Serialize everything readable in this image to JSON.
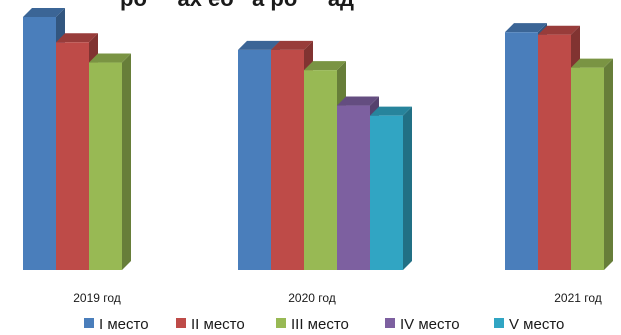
{
  "chart_data": {
    "type": "bar",
    "title": "",
    "title_fragment": "ро     ах ео   а ро     ад",
    "categories": [
      "2019 год",
      "2020 год",
      "2021 год"
    ],
    "series": [
      {
        "name": "I место",
        "color": "#4A7EBB",
        "values": [
          100,
          87,
          94
        ]
      },
      {
        "name": "II место",
        "color": "#BE4B48",
        "values": [
          90,
          87,
          93
        ]
      },
      {
        "name": "III место",
        "color": "#98B954",
        "values": [
          82,
          79,
          80
        ]
      },
      {
        "name": "IV место",
        "color": "#7D60A0",
        "values": [
          null,
          65,
          null
        ]
      },
      {
        "name": "V место",
        "color": "#31A5C3",
        "values": [
          null,
          61,
          null
        ]
      }
    ],
    "xlabel": "",
    "ylabel": "",
    "ylim": [
      0,
      100
    ],
    "grid": false,
    "legend_position": "bottom"
  }
}
